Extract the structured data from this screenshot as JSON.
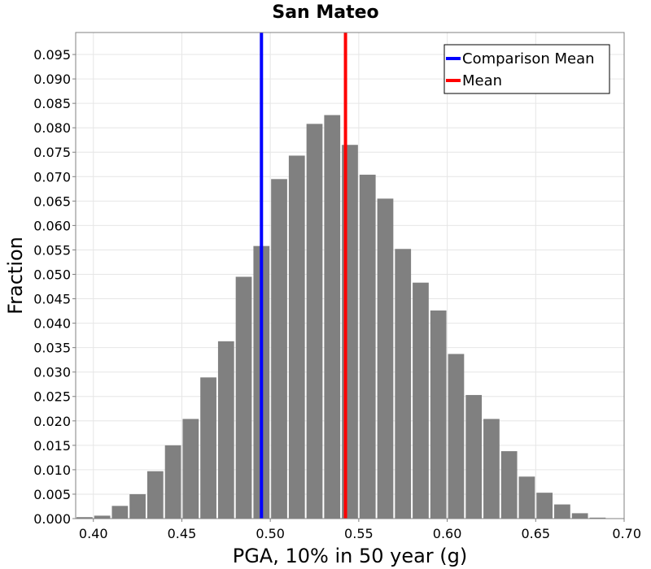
{
  "chart_data": {
    "type": "bar",
    "title": "San Mateo",
    "xlabel": "PGA, 10% in 50 year (g)",
    "ylabel": "Fraction",
    "xlim": [
      0.39,
      0.7
    ],
    "ylim": [
      0.0,
      0.0995
    ],
    "bin_width": 0.01,
    "x": [
      0.395,
      0.405,
      0.415,
      0.425,
      0.435,
      0.445,
      0.455,
      0.465,
      0.475,
      0.485,
      0.495,
      0.505,
      0.515,
      0.525,
      0.535,
      0.545,
      0.555,
      0.565,
      0.575,
      0.585,
      0.595,
      0.605,
      0.615,
      0.625,
      0.635,
      0.645,
      0.655,
      0.665,
      0.675,
      0.685
    ],
    "values": [
      0.0003,
      0.0006,
      0.0026,
      0.005,
      0.0097,
      0.015,
      0.0204,
      0.0289,
      0.0363,
      0.0495,
      0.0558,
      0.0695,
      0.0743,
      0.0808,
      0.0826,
      0.0765,
      0.0704,
      0.0655,
      0.0552,
      0.0483,
      0.0426,
      0.0337,
      0.0253,
      0.0204,
      0.0138,
      0.0086,
      0.0053,
      0.0029,
      0.0011,
      0.0002
    ],
    "bar_color": "#808080",
    "xticks": [
      "0.40",
      "0.45",
      "0.50",
      "0.55",
      "0.60",
      "0.65",
      "0.70"
    ],
    "xtick_values": [
      0.4,
      0.45,
      0.5,
      0.55,
      0.6,
      0.65,
      0.7
    ],
    "yticks": [
      "0.000",
      "0.005",
      "0.010",
      "0.015",
      "0.020",
      "0.025",
      "0.030",
      "0.035",
      "0.040",
      "0.045",
      "0.050",
      "0.055",
      "0.060",
      "0.065",
      "0.070",
      "0.075",
      "0.080",
      "0.085",
      "0.090",
      "0.095"
    ],
    "ytick_values": [
      0.0,
      0.005,
      0.01,
      0.015,
      0.02,
      0.025,
      0.03,
      0.035,
      0.04,
      0.045,
      0.05,
      0.055,
      0.06,
      0.065,
      0.07,
      0.075,
      0.08,
      0.085,
      0.09,
      0.095
    ],
    "vlines": [
      {
        "name": "Comparison Mean",
        "x": 0.495,
        "color": "#0000ff"
      },
      {
        "name": "Mean",
        "x": 0.5425,
        "color": "#ff0000"
      }
    ],
    "legend": {
      "placement": "top-right",
      "entries": [
        "Comparison Mean",
        "Mean"
      ]
    },
    "grid": true
  }
}
